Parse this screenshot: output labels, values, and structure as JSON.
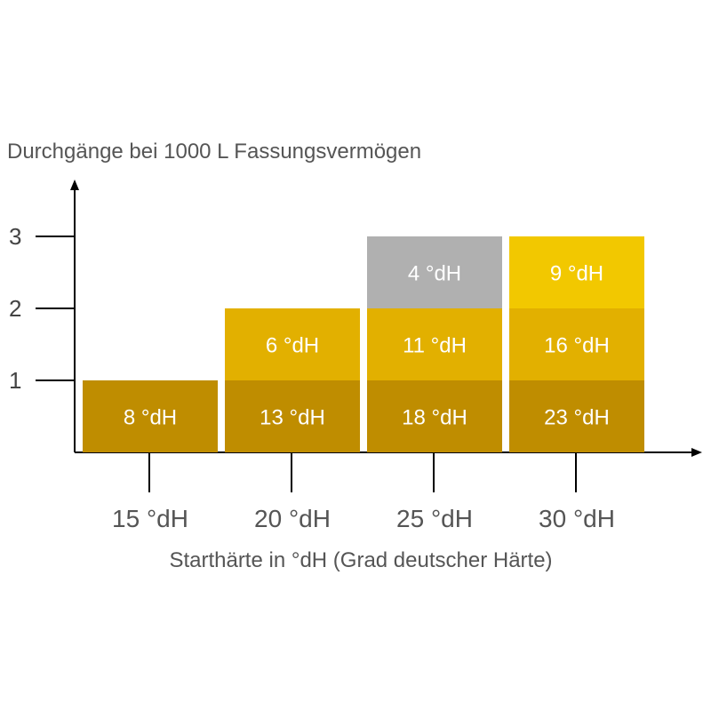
{
  "chart_data": {
    "type": "bar",
    "stacked": true,
    "ylabel": "Durchgänge bei 1000 L Fassungsvermögen",
    "xlabel": "Starthärte in °dH (Grad deutscher Härte)",
    "yticks": [
      "1",
      "2",
      "3"
    ],
    "ylim": [
      0,
      3
    ],
    "categories": [
      "15 °dH",
      "20 °dH",
      "25 °dH",
      "30 °dH"
    ],
    "stacks": [
      [
        "8 °dH"
      ],
      [
        "13 °dH",
        "6 °dH"
      ],
      [
        "18 °dH",
        "11 °dH",
        "4 °dH"
      ],
      [
        "23 °dH",
        "16 °dH",
        "9 °dH"
      ]
    ],
    "colors": {
      "level1": "#bf8d00",
      "level2": "#e2b000",
      "level3_grey": "#b0b0b0",
      "level3_yellow": "#f2c800",
      "axis": "#000000"
    }
  }
}
